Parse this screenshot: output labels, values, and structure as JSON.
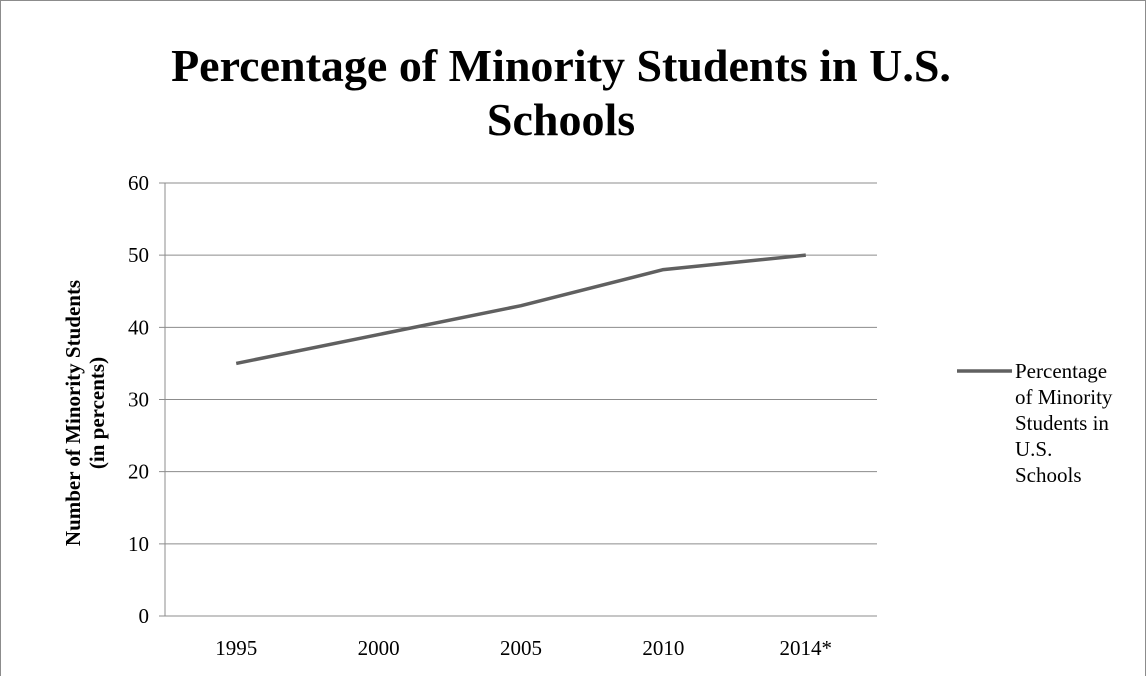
{
  "chart_data": {
    "type": "line",
    "title_lines": [
      "Percentage of Minority Students in U.S.",
      "Schools"
    ],
    "ylabel_lines": [
      "Number of Minority Students",
      "(in percents)"
    ],
    "xlabel": "",
    "categories": [
      "1995",
      "2000",
      "2005",
      "2010",
      "2014*"
    ],
    "series": [
      {
        "name": "Percentage of Minority Students in U.S. Schools",
        "legend_lines": [
          "Percentage",
          "of Minority",
          "Students in",
          "U.S.",
          "Schools"
        ],
        "values": [
          35,
          39,
          43,
          48,
          50
        ],
        "color": "#606060"
      }
    ],
    "ylim": [
      0,
      60
    ],
    "yticks": [
      "0",
      "10",
      "20",
      "30",
      "40",
      "50",
      "60"
    ],
    "grid": true,
    "legend_position": "right"
  }
}
